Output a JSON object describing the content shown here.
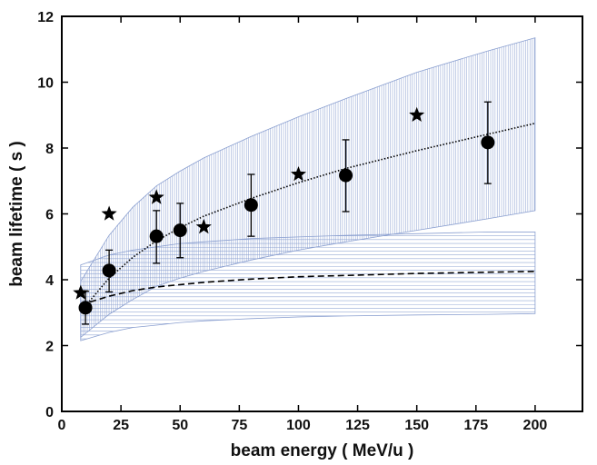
{
  "chart_data": {
    "type": "scatter",
    "title": "",
    "xlabel": "beam energy ( MeV/u )",
    "ylabel": "beam lifetime ( s )",
    "xlim": [
      0,
      220
    ],
    "ylim": [
      0,
      12
    ],
    "x_ticks": [
      0,
      25,
      50,
      75,
      100,
      125,
      150,
      175,
      200
    ],
    "y_ticks": [
      0,
      2,
      4,
      6,
      8,
      10,
      12
    ],
    "grid": false,
    "legend": "none",
    "series": [
      {
        "marker": "circle",
        "color": "#000000",
        "points": [
          {
            "x": 10,
            "y": 3.15,
            "err_low": 0.5,
            "err_high": 0.5
          },
          {
            "x": 20,
            "y": 4.28,
            "err_low": 0.65,
            "err_high": 0.62
          },
          {
            "x": 40,
            "y": 5.32,
            "err_low": 0.82,
            "err_high": 0.78
          },
          {
            "x": 50,
            "y": 5.5,
            "err_low": 0.83,
            "err_high": 0.82
          },
          {
            "x": 80,
            "y": 6.27,
            "err_low": 0.95,
            "err_high": 0.93
          },
          {
            "x": 120,
            "y": 7.17,
            "err_low": 1.1,
            "err_high": 1.08
          },
          {
            "x": 180,
            "y": 8.17,
            "err_low": 1.25,
            "err_high": 1.23
          }
        ]
      },
      {
        "marker": "star",
        "color": "#000000",
        "points": [
          {
            "x": 8,
            "y": 3.6
          },
          {
            "x": 20,
            "y": 6.0
          },
          {
            "x": 40,
            "y": 6.5
          },
          {
            "x": 60,
            "y": 5.6
          },
          {
            "x": 100,
            "y": 7.2
          },
          {
            "x": 150,
            "y": 9.0
          }
        ]
      },
      {
        "style": "dotted-line",
        "color": "#000000",
        "x": [
          8,
          10,
          20,
          30,
          40,
          50,
          60,
          80,
          100,
          120,
          150,
          180,
          200
        ],
        "y": [
          3.05,
          3.2,
          4.05,
          4.68,
          5.18,
          5.58,
          5.93,
          6.47,
          6.95,
          7.38,
          7.92,
          8.42,
          8.75
        ]
      },
      {
        "style": "dashed-line",
        "color": "#000000",
        "x": [
          8,
          10,
          20,
          30,
          40,
          50,
          60,
          80,
          100,
          120,
          150,
          180,
          200
        ],
        "y": [
          3.22,
          3.28,
          3.5,
          3.67,
          3.78,
          3.85,
          3.92,
          4.02,
          4.09,
          4.13,
          4.19,
          4.23,
          4.25
        ]
      }
    ],
    "bands": [
      {
        "pattern": "vertical-hatch",
        "color": "#8a9fd0",
        "x": [
          8,
          20,
          30,
          40,
          50,
          60,
          80,
          100,
          120,
          150,
          180,
          200
        ],
        "upper": [
          3.95,
          5.35,
          6.2,
          6.85,
          7.3,
          7.7,
          8.35,
          8.95,
          9.5,
          10.3,
          10.95,
          11.35
        ],
        "lower": [
          2.25,
          2.95,
          3.4,
          3.8,
          4.05,
          4.25,
          4.6,
          4.9,
          5.15,
          5.5,
          5.85,
          6.1
        ]
      },
      {
        "pattern": "horizontal-hatch",
        "color": "#8a9fd0",
        "x": [
          8,
          20,
          30,
          40,
          50,
          60,
          80,
          100,
          120,
          150,
          180,
          200
        ],
        "upper": [
          4.45,
          4.75,
          4.9,
          5.0,
          5.1,
          5.15,
          5.25,
          5.3,
          5.35,
          5.4,
          5.45,
          5.45
        ],
        "lower": [
          2.15,
          2.4,
          2.55,
          2.62,
          2.7,
          2.75,
          2.82,
          2.87,
          2.9,
          2.93,
          2.95,
          2.97
        ]
      }
    ]
  }
}
